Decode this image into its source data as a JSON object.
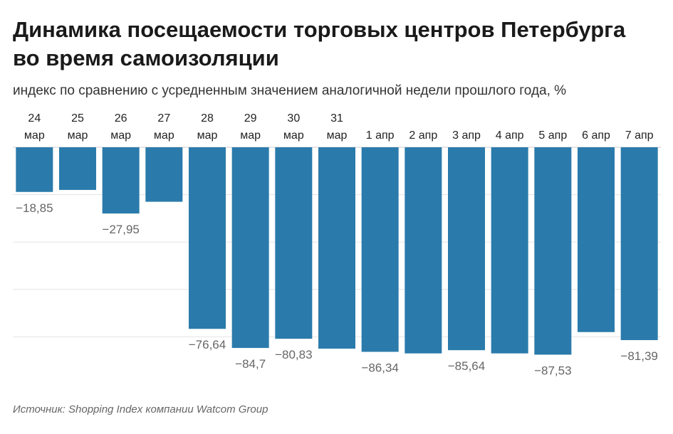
{
  "title": "Динамика посещаемости торговых центров Петербурга во время самоизоляции",
  "subtitle": "индекс по сравнению с усредненным значением аналогичной недели прошлого года, %",
  "source": "Источник: Shopping Index компании Watcom Group",
  "colors": {
    "bar": "#2a7bab",
    "grid": "#e3e3e3",
    "label": "#666666",
    "category": "#222222"
  },
  "chart_data": {
    "type": "bar",
    "categories": [
      [
        "24",
        "мар"
      ],
      [
        "25",
        "мар"
      ],
      [
        "26",
        "мар"
      ],
      [
        "27",
        "мар"
      ],
      [
        "28",
        "мар"
      ],
      [
        "29",
        "мар"
      ],
      [
        "30",
        "мар"
      ],
      [
        "31",
        "мар"
      ],
      [
        "1 апр"
      ],
      [
        "2 апр"
      ],
      [
        "3 апр"
      ],
      [
        "4 апр"
      ],
      [
        "5 апр"
      ],
      [
        "6 апр"
      ],
      [
        "7 апр"
      ]
    ],
    "values": [
      -18.85,
      -18,
      -27.95,
      -23,
      -76.64,
      -84.7,
      -80.83,
      -85,
      -86.34,
      -87,
      -85.64,
      -87,
      -87.53,
      -78,
      -81.39
    ],
    "data_labels": [
      "−18,85",
      "",
      "−27,95",
      "",
      "−76,64",
      "−84,7",
      "−80,83",
      "",
      "−86,34",
      "",
      "−85,64",
      "",
      "−87,53",
      "",
      "−81,39"
    ],
    "ylim": [
      -100,
      0
    ],
    "grid": true
  }
}
